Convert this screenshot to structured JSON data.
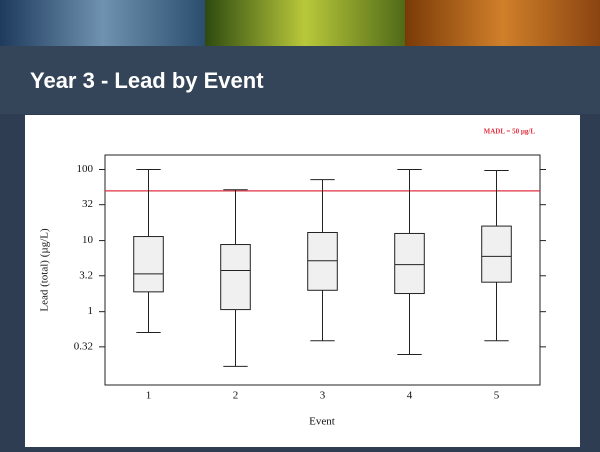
{
  "chart_data": {
    "type": "box",
    "title": "Year 3 - Lead by Event",
    "x_label": "Event",
    "y_label": "Lead (total) (µg/L)",
    "annotation": "MADL = 50 µg/L",
    "reference_line": 50,
    "reference_color": "#e03040",
    "categories": [
      "1",
      "2",
      "3",
      "4",
      "5"
    ],
    "boxes": [
      {
        "whisker_low": 0.51,
        "q1": 1.9,
        "median": 3.4,
        "q3": 11.4,
        "whisker_high": 100
      },
      {
        "whisker_low": 0.17,
        "q1": 1.07,
        "median": 3.8,
        "q3": 8.8,
        "whisker_high": 52
      },
      {
        "whisker_low": 0.39,
        "q1": 2.0,
        "median": 5.2,
        "q3": 13,
        "whisker_high": 72
      },
      {
        "whisker_low": 0.25,
        "q1": 1.8,
        "median": 4.6,
        "q3": 12.6,
        "whisker_high": 100
      },
      {
        "whisker_low": 0.39,
        "q1": 2.6,
        "median": 6.0,
        "q3": 16,
        "whisker_high": 97
      }
    ],
    "box_color": "#f0f0f0",
    "log_y": true,
    "ylim": [
      0.093,
      160
    ],
    "yticks": [
      100,
      32,
      10,
      3.2,
      1,
      0.32
    ]
  }
}
